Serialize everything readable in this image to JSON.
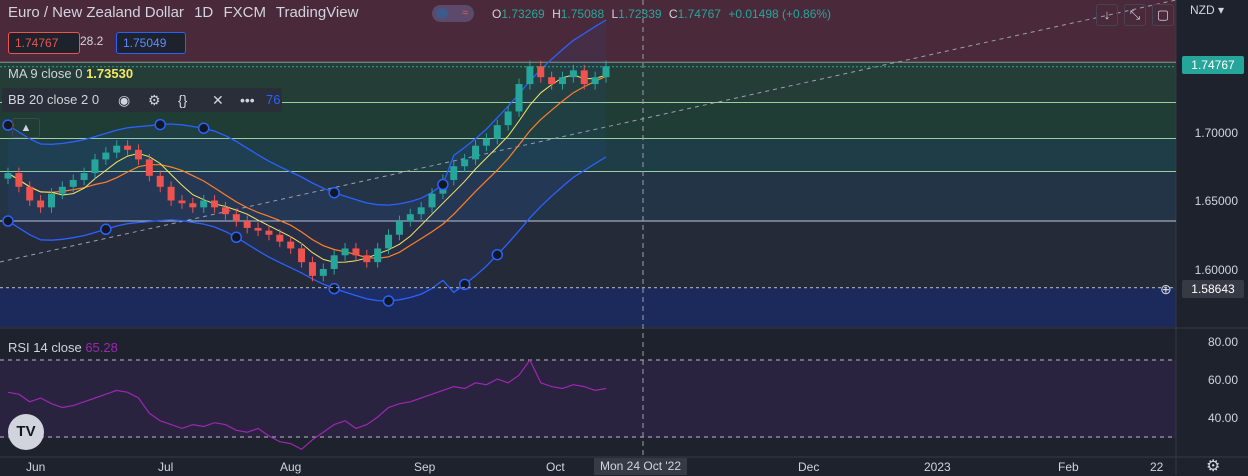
{
  "header": {
    "symbol_name": "Euro / New Zealand Dollar",
    "interval": "1D",
    "exchange": "FXCM",
    "source": "TradingView"
  },
  "ohlc": {
    "o_label": "O",
    "o": "1.73269",
    "h_label": "H",
    "h": "1.75088",
    "l_label": "L",
    "l": "1.72339",
    "c_label": "C",
    "c": "1.74767",
    "change": "+0.01498 (+0.86%)"
  },
  "trade": {
    "sell": "1.74767",
    "spread": "28.2",
    "buy": "1.75049"
  },
  "indicators": {
    "ma_label": "MA 9 close 0",
    "ma_value": "1.73530",
    "bb_label": "BB 20 close 2 0",
    "bb_tail": "76",
    "rsi_label": "RSI 14 close",
    "rsi_value": "65.28"
  },
  "icons": [
    "eye-icon",
    "settings-icon",
    "source-code-icon",
    "close-icon",
    "more-icon",
    "collapse-icon",
    "arrow-down-icon",
    "fullscreen-icon",
    "maximize-icon",
    "crosshair-icon",
    "tradingview-logo",
    "gear-icon"
  ],
  "price_axis": {
    "currency": "NZD",
    "ticks": [
      "1.70000",
      "1.65000",
      "1.60000"
    ],
    "current_price": "1.74767",
    "crosshair_price": "1.58643"
  },
  "rsi_axis": {
    "ticks": [
      "80.00",
      "60.00",
      "40.00"
    ]
  },
  "time_axis": {
    "labels": [
      "Jun",
      "Jul",
      "Aug",
      "Sep",
      "Oct",
      "Dec",
      "2023",
      "Feb",
      "22"
    ],
    "crosshair_date": "Mon 24 Oct '22"
  },
  "colors": {
    "background": "#1e222d",
    "up": "#26a69a",
    "down": "#ef5350",
    "bollinger": "#2962ff",
    "ma_yellow": "#f5e663",
    "ma_orange": "#ff7f27",
    "rsi": "#9c27b0"
  },
  "chart_data": {
    "type": "candlestick",
    "price_range": [
      1.57,
      1.8
    ],
    "x_range_days": [
      "Jun",
      "Feb"
    ],
    "candles_close_path": [
      1.67,
      1.66,
      1.65,
      1.645,
      1.655,
      1.66,
      1.665,
      1.67,
      1.68,
      1.685,
      1.69,
      1.687,
      1.68,
      1.668,
      1.66,
      1.65,
      1.648,
      1.645,
      1.65,
      1.645,
      1.64,
      1.635,
      1.63,
      1.628,
      1.625,
      1.62,
      1.615,
      1.605,
      1.595,
      1.6,
      1.61,
      1.615,
      1.61,
      1.605,
      1.615,
      1.625,
      1.635,
      1.64,
      1.645,
      1.655,
      1.665,
      1.675,
      1.68,
      1.69,
      1.695,
      1.705,
      1.715,
      1.735,
      1.748,
      1.74,
      1.735,
      1.74,
      1.745,
      1.735,
      1.74,
      1.748
    ],
    "rsi_values": [
      63,
      62,
      58,
      60,
      57,
      55,
      56,
      58,
      60,
      62,
      64,
      63,
      60,
      52,
      48,
      46,
      44,
      46,
      45,
      47,
      46,
      43,
      42,
      44,
      40,
      37,
      36,
      33,
      38,
      42,
      46,
      48,
      44,
      46,
      50,
      55,
      57,
      58,
      60,
      62,
      64,
      66,
      65,
      68,
      67,
      70,
      68,
      72,
      80,
      68,
      66,
      65,
      67,
      66,
      64,
      65
    ],
    "horizontal_levels": [
      1.7509,
      1.7215,
      1.6953,
      1.6712,
      1.635,
      1.5864
    ]
  }
}
